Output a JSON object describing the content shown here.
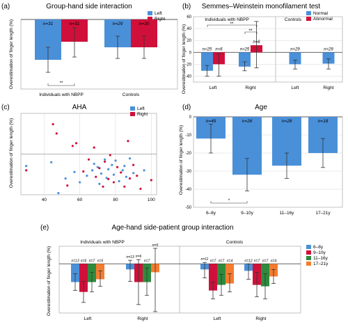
{
  "colors": {
    "left": "#4a90d9",
    "right": "#d0103a",
    "age_6_8": "#4a90d9",
    "age_9_10": "#d0103a",
    "age_11_16": "#2e8b3e",
    "age_17_21": "#f47c30",
    "grid": "#cccccc",
    "axis": "#333333"
  },
  "shared": {
    "ylabel": "Overestimation of finger length (%)"
  },
  "chart_data": [
    {
      "id": "a",
      "panel_label": "(a)",
      "type": "bar",
      "title": "Group-hand side interaction",
      "ylabel": "Overestimation of finger length (%)",
      "ylim": [
        -50,
        0
      ],
      "yticks": [],
      "categories": [
        "Individuals with NBPP",
        "Controls"
      ],
      "legend": {
        "position": "top-right",
        "entries": [
          "Left",
          "Right"
        ]
      },
      "series": [
        {
          "name": "Left",
          "values": [
            -29,
            -20
          ],
          "err_low": [
            -38,
            -28
          ],
          "err_high": [
            -20,
            -12
          ],
          "n": [
            "n=31",
            "n=29"
          ]
        },
        {
          "name": "Right",
          "values": [
            -16,
            -20
          ],
          "err_low": [
            -27,
            -28
          ],
          "err_high": [
            -6,
            -12
          ],
          "n": [
            "n=31",
            "n=30"
          ]
        }
      ],
      "annotations": [
        {
          "text": "**",
          "between": "Individuals with NBPP Left-Right"
        }
      ]
    },
    {
      "id": "b",
      "panel_label": "(b)",
      "type": "bar",
      "title": "Semmes–Weinstein monofilament test",
      "ylabel": "Overestimation of finger length (%)",
      "ylim": [
        -50,
        60
      ],
      "yticks": [
        -40,
        -20,
        0,
        20,
        40,
        60
      ],
      "group_labels": [
        "Individuals with NBPP",
        "Controls"
      ],
      "categories": [
        "Left",
        "Right",
        "Left",
        "Right"
      ],
      "legend": {
        "position": "top-right",
        "entries": [
          "Normal",
          "Abnormal"
        ]
      },
      "series": [
        {
          "name": "Normal",
          "values": [
            -31,
            -24,
            -20,
            -19
          ],
          "err_low": [
            -40,
            -31,
            -28,
            -28
          ],
          "err_high": [
            -22,
            -16,
            -13,
            -11
          ],
          "n": [
            "n=25",
            "n=25",
            "n=29",
            "n=29"
          ]
        },
        {
          "name": "Abnormal",
          "values": [
            -20,
            12,
            null,
            null
          ],
          "err_low": [
            -40,
            -26,
            null,
            null
          ],
          "err_high": [
            -3,
            52,
            null,
            null
          ],
          "n": [
            "n=6",
            "n=6",
            "",
            ""
          ]
        }
      ],
      "annotations": [
        {
          "text": "**",
          "between": "Left Normal - Right Abnormal"
        },
        {
          "text": "**",
          "between": "Right Normal - Right Abnormal"
        }
      ]
    },
    {
      "id": "c",
      "panel_label": "(c)",
      "type": "scatter",
      "title": "AHA",
      "ylabel": "Overestimation of finger length (%)",
      "xlim": [
        27,
        103
      ],
      "ylim": [
        -75,
        75
      ],
      "xticks": [
        40,
        60,
        80,
        100
      ],
      "legend": {
        "position": "top-right",
        "entries": [
          "Left",
          "Right"
        ]
      },
      "series": [
        {
          "name": "Left",
          "points": [
            [
              30,
              -22
            ],
            [
              44,
              -15
            ],
            [
              48,
              -72
            ],
            [
              52,
              -45
            ],
            [
              57,
              -33
            ],
            [
              60,
              -52
            ],
            [
              64,
              -40
            ],
            [
              67,
              -30
            ],
            [
              68,
              -18
            ],
            [
              70,
              -24
            ],
            [
              71,
              -55
            ],
            [
              72,
              -36
            ],
            [
              74,
              -10
            ],
            [
              75,
              -44
            ],
            [
              76,
              -28
            ],
            [
              78,
              -20
            ],
            [
              79,
              -38
            ],
            [
              80,
              -12
            ],
            [
              82,
              -50
            ],
            [
              84,
              -30
            ],
            [
              85,
              -22
            ],
            [
              86,
              -42
            ],
            [
              88,
              -8
            ],
            [
              90,
              -35
            ],
            [
              96,
              -30
            ]
          ]
        },
        {
          "name": "Right",
          "points": [
            [
              30,
              -30
            ],
            [
              45,
              55
            ],
            [
              47,
              38
            ],
            [
              53,
              -58
            ],
            [
              56,
              15
            ],
            [
              58,
              20
            ],
            [
              62,
              -32
            ],
            [
              65,
              -10
            ],
            [
              68,
              12
            ],
            [
              69,
              -42
            ],
            [
              71,
              -26
            ],
            [
              73,
              -60
            ],
            [
              74,
              -14
            ],
            [
              76,
              -46
            ],
            [
              77,
              -2
            ],
            [
              79,
              -52
            ],
            [
              81,
              -24
            ],
            [
              83,
              -34
            ],
            [
              85,
              -60
            ],
            [
              87,
              24
            ],
            [
              88,
              -45
            ],
            [
              90,
              -20
            ],
            [
              92,
              -40
            ],
            [
              94,
              -64
            ],
            [
              100,
              -48
            ]
          ]
        }
      ]
    },
    {
      "id": "d",
      "panel_label": "(d)",
      "type": "bar",
      "title": "Age",
      "ylabel": "Overestimation of finger length (%)",
      "ylim": [
        -50,
        0
      ],
      "yticks": [
        -50,
        -40,
        -30,
        -20,
        -10,
        0
      ],
      "categories": [
        "6–8y",
        "9–10y",
        "11–16y",
        "17–21y"
      ],
      "values": [
        -12,
        -32,
        -27,
        -20
      ],
      "err_low": [
        -20,
        -41,
        -34,
        -28
      ],
      "err_high": [
        -4,
        -23,
        -20,
        -12
      ],
      "n": [
        "n=49",
        "n=26",
        "n=28",
        "n=18"
      ],
      "annotations": [
        {
          "text": "*",
          "between": "6–8y - 9–10y"
        }
      ]
    },
    {
      "id": "e",
      "panel_label": "(e)",
      "type": "bar",
      "title": "Age-hand side-patient group interaction",
      "ylabel": "Overestimation of finger length (%)",
      "group_labels": [
        "Individuals with NBPP",
        "Controls"
      ],
      "categories": [
        "Left",
        "Right",
        "Left",
        "Right"
      ],
      "legend": {
        "position": "right",
        "entries": [
          "6–8y",
          "9–10y",
          "11–16y",
          "17–21y"
        ]
      },
      "series": [
        {
          "name": "6–8y",
          "values": [
            -26,
            -8,
            -8,
            -10
          ],
          "err_low": [
            -38,
            -25,
            -20,
            -22
          ],
          "err_high": [
            -14,
            5,
            2,
            0
          ],
          "n": [
            "n=13",
            "n=13",
            "n=11",
            "n=12"
          ]
        },
        {
          "name": "9–10y",
          "values": [
            -40,
            -26,
            -38,
            -30
          ],
          "err_low": [
            -55,
            -58,
            -50,
            -47
          ],
          "err_high": [
            -25,
            6,
            -26,
            -12
          ],
          "n": [
            "n=6",
            "n=6",
            "n=7",
            "n=7"
          ]
        },
        {
          "name": "11–16y",
          "values": [
            -26,
            -26,
            -30,
            -32
          ],
          "err_low": [
            -40,
            -45,
            -45,
            -50
          ],
          "err_high": [
            -12,
            -6,
            -15,
            -14
          ],
          "n": [
            "n=7",
            "n=7",
            "n=7",
            "n=7"
          ]
        },
        {
          "name": "17–21y",
          "values": [
            -22,
            -12,
            -28,
            -18
          ],
          "err_low": [
            -32,
            -68,
            -40,
            -28
          ],
          "err_high": [
            -10,
            22,
            -14,
            -8
          ],
          "n": [
            "n=5",
            "n=5",
            "n=4",
            "n=4"
          ]
        }
      ]
    }
  ]
}
